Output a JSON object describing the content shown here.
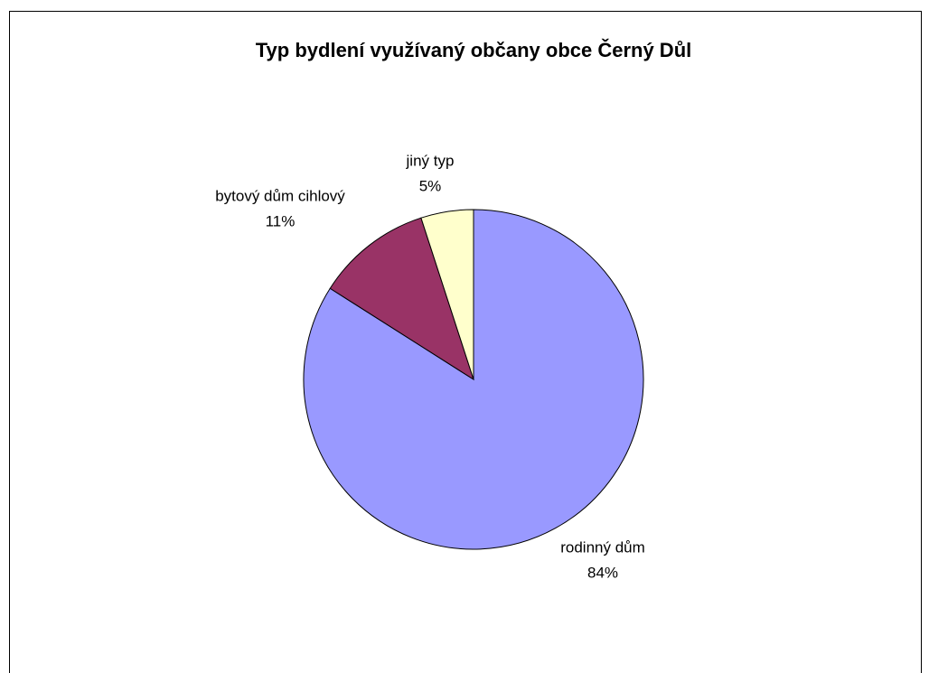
{
  "chart_data": {
    "type": "pie",
    "title": "Typ bydlení využívaný občany obce Černý Důl",
    "categories": [
      "rodinný dům",
      "bytový dům cihlový",
      "jiný typ"
    ],
    "values": [
      84,
      11,
      5
    ],
    "value_labels": [
      "84%",
      "11%",
      "5%"
    ],
    "colors": [
      "#9999ff",
      "#993366",
      "#ffffcc"
    ]
  }
}
